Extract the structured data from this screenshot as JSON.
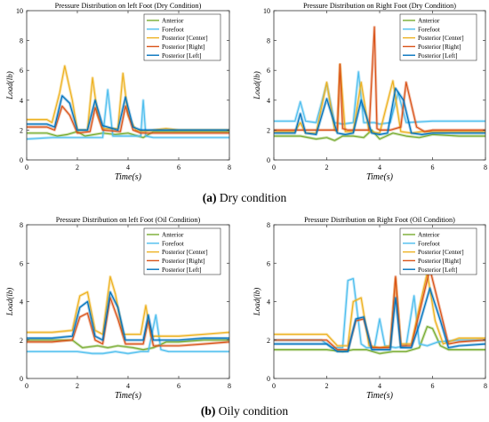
{
  "captions": [
    {
      "letter": "(a)",
      "text": " Dry condition"
    },
    {
      "letter": "(b)",
      "text": " Oily condition"
    }
  ],
  "colors": {
    "Anterior": "#77ac30",
    "Forefoot": "#4dbeee",
    "Posterior [Center]": "#edb120",
    "Posterior [Right]": "#d95319",
    "Posterior [Left]": "#0072bd"
  },
  "chart_data": [
    {
      "type": "line",
      "title": "Pressure Distribution on left Foot (Dry Condition)",
      "xlabel": "Time(s)",
      "ylabel": "Load(lb)",
      "xlim": [
        0,
        8
      ],
      "ylim": [
        0,
        10
      ],
      "xticks": [
        0,
        2,
        4,
        6,
        8
      ],
      "yticks": [
        0,
        2,
        4,
        6,
        8,
        10
      ],
      "legend_position": "top-right",
      "series": [
        {
          "name": "Anterior",
          "x": [
            0,
            0.8,
            1.2,
            1.6,
            2.0,
            2.3,
            3.0,
            3.5,
            4.0,
            4.6,
            5.0,
            5.5,
            6.0,
            7.0,
            8.0
          ],
          "y": [
            1.8,
            1.8,
            1.6,
            1.7,
            1.9,
            1.6,
            1.8,
            1.7,
            1.8,
            1.5,
            1.9,
            1.9,
            1.9,
            1.9,
            1.9
          ]
        },
        {
          "name": "Forefoot",
          "x": [
            0,
            1.0,
            2.0,
            3.0,
            3.2,
            3.4,
            4.0,
            4.5,
            4.6,
            4.7,
            5.0,
            6.0,
            7.0,
            8.0
          ],
          "y": [
            1.4,
            1.5,
            1.5,
            1.5,
            4.7,
            1.6,
            1.6,
            1.6,
            4.0,
            1.6,
            1.5,
            1.5,
            1.5,
            1.5
          ]
        },
        {
          "name": "Posterior [Center]",
          "x": [
            0,
            0.8,
            1.0,
            1.3,
            1.5,
            1.8,
            2.0,
            2.4,
            2.6,
            2.8,
            3.0,
            3.6,
            3.8,
            4.0,
            4.3,
            4.6,
            5.0,
            5.5,
            6.0,
            7.0,
            8.0
          ],
          "y": [
            2.7,
            2.7,
            2.5,
            4.5,
            6.3,
            4.0,
            2.0,
            2.0,
            5.5,
            3.0,
            2.1,
            2.1,
            5.8,
            3.0,
            2.0,
            1.9,
            2.0,
            2.1,
            2.0,
            2.0,
            2.0
          ]
        },
        {
          "name": "Posterior [Right]",
          "x": [
            0,
            0.8,
            1.1,
            1.4,
            1.7,
            2.0,
            2.5,
            2.7,
            3.0,
            3.7,
            3.9,
            4.2,
            4.5,
            5.0,
            6.0,
            7.0,
            8.0
          ],
          "y": [
            2.2,
            2.2,
            2.0,
            3.6,
            3.0,
            1.8,
            1.9,
            3.5,
            2.0,
            1.9,
            3.6,
            2.0,
            1.8,
            1.8,
            1.8,
            1.8,
            1.8
          ]
        },
        {
          "name": "Posterior [Left]",
          "x": [
            0,
            0.8,
            1.1,
            1.4,
            1.7,
            2.0,
            2.4,
            2.7,
            3.0,
            3.6,
            3.9,
            4.2,
            4.5,
            5.0,
            6.0,
            7.0,
            8.0
          ],
          "y": [
            2.4,
            2.4,
            2.2,
            4.3,
            3.8,
            2.0,
            2.0,
            4.0,
            2.3,
            2.0,
            4.2,
            2.2,
            2.0,
            2.0,
            2.0,
            2.0,
            2.0
          ]
        }
      ]
    },
    {
      "type": "line",
      "title": "Pressure Distribution on Right Foot (Dry Condition)",
      "xlabel": "Time(s)",
      "ylabel": "Load(lb)",
      "xlim": [
        0,
        8
      ],
      "ylim": [
        0,
        10
      ],
      "xticks": [
        0,
        2,
        4,
        6,
        8
      ],
      "yticks": [
        0,
        2,
        4,
        6,
        8,
        10
      ],
      "legend_position": "top-right",
      "series": [
        {
          "name": "Anterior",
          "x": [
            0,
            1.0,
            1.6,
            2.0,
            2.3,
            2.6,
            3.0,
            3.4,
            3.7,
            4.0,
            4.5,
            5.0,
            5.5,
            6.0,
            7.0,
            8.0
          ],
          "y": [
            1.6,
            1.6,
            1.4,
            1.5,
            1.3,
            1.6,
            1.6,
            1.5,
            2.0,
            1.4,
            1.8,
            1.6,
            1.5,
            1.7,
            1.6,
            1.6
          ]
        },
        {
          "name": "Forefoot",
          "x": [
            0,
            0.8,
            1.0,
            1.2,
            1.6,
            2.0,
            2.3,
            2.6,
            3.0,
            3.2,
            3.4,
            3.8,
            4.0,
            4.4,
            4.7,
            5.0,
            6.0,
            7.0,
            8.0
          ],
          "y": [
            2.6,
            2.6,
            3.9,
            2.6,
            2.5,
            5.1,
            2.5,
            2.4,
            2.5,
            5.9,
            2.5,
            2.5,
            2.4,
            2.5,
            4.5,
            2.5,
            2.6,
            2.6,
            2.6
          ]
        },
        {
          "name": "Posterior [Center]",
          "x": [
            0,
            0.8,
            1.0,
            1.2,
            1.6,
            2.0,
            2.3,
            2.4,
            2.5,
            2.7,
            3.0,
            3.3,
            3.6,
            4.0,
            4.5,
            4.8,
            5.2,
            5.6,
            6.0,
            7.0,
            8.0
          ],
          "y": [
            1.9,
            1.9,
            2.5,
            1.8,
            1.8,
            5.2,
            2.0,
            1.9,
            6.4,
            1.9,
            1.9,
            5.2,
            1.9,
            1.8,
            5.3,
            1.9,
            1.8,
            1.9,
            1.9,
            1.9,
            1.9
          ]
        },
        {
          "name": "Posterior [Right]",
          "x": [
            0,
            1.0,
            1.6,
            2.0,
            2.4,
            2.5,
            2.6,
            2.8,
            3.3,
            3.6,
            3.8,
            3.9,
            4.0,
            4.4,
            4.8,
            5.0,
            5.4,
            5.7,
            6.0,
            7.0,
            8.0
          ],
          "y": [
            2.0,
            2.0,
            2.0,
            2.0,
            2.0,
            6.4,
            2.1,
            2.0,
            2.0,
            2.0,
            8.9,
            2.1,
            2.0,
            2.0,
            2.2,
            5.2,
            2.2,
            1.9,
            2.0,
            2.0,
            2.0
          ]
        },
        {
          "name": "Posterior [Left]",
          "x": [
            0,
            0.8,
            1.0,
            1.2,
            1.6,
            2.0,
            2.4,
            2.7,
            3.0,
            3.3,
            3.7,
            4.0,
            4.3,
            4.6,
            4.9,
            5.2,
            5.6,
            6.0,
            7.0,
            8.0
          ],
          "y": [
            1.8,
            1.8,
            3.1,
            1.8,
            1.7,
            4.1,
            1.8,
            1.7,
            1.8,
            4.0,
            1.8,
            1.7,
            1.8,
            4.8,
            4.0,
            1.8,
            1.7,
            1.8,
            1.8,
            1.8
          ]
        }
      ]
    },
    {
      "type": "line",
      "title": "Pressure Distribution on left Foot (Oil Condition)",
      "xlabel": "Time(s)",
      "ylabel": "Load(lb)",
      "xlim": [
        0,
        8
      ],
      "ylim": [
        0,
        8
      ],
      "xticks": [
        0,
        2,
        4,
        6,
        8
      ],
      "yticks": [
        0,
        2,
        4,
        6,
        8
      ],
      "legend_position": "top-right",
      "series": [
        {
          "name": "Anterior",
          "x": [
            0,
            1.0,
            1.8,
            2.2,
            2.8,
            3.2,
            3.6,
            4.2,
            4.6,
            5.0,
            5.5,
            6.0,
            7.0,
            8.0
          ],
          "y": [
            2.0,
            2.0,
            2.0,
            1.6,
            1.7,
            1.6,
            1.7,
            1.6,
            1.5,
            1.6,
            1.9,
            1.9,
            2.0,
            2.0
          ]
        },
        {
          "name": "Forefoot",
          "x": [
            0,
            1.0,
            2.0,
            2.6,
            3.0,
            3.5,
            4.0,
            4.5,
            4.8,
            5.1,
            5.3,
            5.6,
            6.0,
            7.0,
            8.0
          ],
          "y": [
            1.4,
            1.4,
            1.4,
            1.3,
            1.3,
            1.4,
            1.3,
            1.4,
            1.4,
            3.3,
            1.5,
            1.4,
            1.4,
            1.4,
            1.4
          ]
        },
        {
          "name": "Posterior [Center]",
          "x": [
            0,
            1.0,
            1.8,
            2.1,
            2.4,
            2.7,
            3.0,
            3.3,
            3.5,
            3.8,
            4.2,
            4.5,
            4.7,
            4.9,
            5.2,
            5.6,
            6.0,
            7.0,
            8.0
          ],
          "y": [
            2.4,
            2.4,
            2.5,
            4.3,
            4.5,
            2.5,
            2.3,
            5.3,
            4.4,
            2.3,
            2.3,
            2.3,
            3.8,
            2.2,
            2.2,
            2.2,
            2.2,
            2.3,
            2.4
          ]
        },
        {
          "name": "Posterior [Right]",
          "x": [
            0,
            1.0,
            1.8,
            2.1,
            2.4,
            2.7,
            3.0,
            3.3,
            3.6,
            3.9,
            4.3,
            4.6,
            4.8,
            5.0,
            5.4,
            6.0,
            7.0,
            8.0
          ],
          "y": [
            1.9,
            1.9,
            2.0,
            3.2,
            3.4,
            2.0,
            1.8,
            4.2,
            3.1,
            1.8,
            1.8,
            1.8,
            3.0,
            1.7,
            1.7,
            1.7,
            1.8,
            1.9
          ]
        },
        {
          "name": "Posterior [Left]",
          "x": [
            0,
            1.0,
            1.8,
            2.1,
            2.4,
            2.7,
            3.0,
            3.3,
            3.6,
            3.9,
            4.3,
            4.6,
            4.8,
            5.0,
            5.4,
            6.0,
            7.0,
            8.0
          ],
          "y": [
            2.1,
            2.1,
            2.2,
            3.7,
            4.0,
            2.2,
            2.0,
            4.5,
            3.7,
            2.0,
            2.0,
            2.0,
            3.3,
            2.0,
            2.0,
            2.0,
            2.1,
            2.1
          ]
        }
      ]
    },
    {
      "type": "line",
      "title": "Pressure Distribution on Right Foot (Oil Condition)",
      "xlabel": "Time(s)",
      "ylabel": "Load(lb)",
      "xlim": [
        0,
        8
      ],
      "ylim": [
        0,
        8
      ],
      "xticks": [
        0,
        2,
        4,
        6,
        8
      ],
      "yticks": [
        0,
        2,
        4,
        6,
        8
      ],
      "legend_position": "top-right",
      "series": [
        {
          "name": "Anterior",
          "x": [
            0,
            1.0,
            2.0,
            2.6,
            3.0,
            3.5,
            4.0,
            4.5,
            5.0,
            5.5,
            5.8,
            6.0,
            6.3,
            6.6,
            7.0,
            8.0
          ],
          "y": [
            1.5,
            1.5,
            1.5,
            1.4,
            1.5,
            1.5,
            1.3,
            1.4,
            1.4,
            1.6,
            2.7,
            2.6,
            1.7,
            1.5,
            1.5,
            1.5
          ]
        },
        {
          "name": "Forefoot",
          "x": [
            0,
            1.0,
            1.8,
            2.2,
            2.6,
            2.8,
            3.0,
            3.3,
            3.5,
            3.8,
            4.0,
            4.2,
            4.6,
            5.0,
            5.3,
            5.5,
            5.8,
            6.2,
            7.0,
            8.0
          ],
          "y": [
            2.0,
            2.0,
            2.0,
            1.6,
            1.6,
            5.1,
            5.2,
            1.8,
            1.6,
            1.6,
            3.1,
            1.7,
            1.6,
            1.7,
            4.3,
            1.8,
            1.7,
            1.9,
            2.0,
            2.0
          ]
        },
        {
          "name": "Posterior [Center]",
          "x": [
            0,
            1.0,
            2.0,
            2.4,
            2.8,
            3.0,
            3.3,
            3.6,
            4.0,
            4.4,
            4.6,
            4.8,
            5.2,
            5.5,
            5.8,
            6.1,
            6.4,
            7.0,
            8.0
          ],
          "y": [
            2.3,
            2.3,
            2.3,
            1.7,
            1.7,
            4.0,
            4.2,
            1.7,
            1.6,
            1.7,
            5.2,
            1.8,
            1.8,
            3.7,
            5.5,
            3.0,
            1.8,
            2.1,
            2.1
          ]
        },
        {
          "name": "Posterior [Right]",
          "x": [
            0,
            1.0,
            2.0,
            2.4,
            2.8,
            3.1,
            3.4,
            3.7,
            4.0,
            4.4,
            4.6,
            4.8,
            5.2,
            5.5,
            5.9,
            6.3,
            6.6,
            7.0,
            8.0
          ],
          "y": [
            2.0,
            2.0,
            2.0,
            1.5,
            1.5,
            3.0,
            3.1,
            1.6,
            1.6,
            1.6,
            5.3,
            1.7,
            1.7,
            3.4,
            5.7,
            3.5,
            1.8,
            1.9,
            2.0
          ]
        },
        {
          "name": "Posterior [Left]",
          "x": [
            0,
            1.0,
            2.0,
            2.4,
            2.8,
            3.1,
            3.4,
            3.7,
            4.0,
            4.4,
            4.6,
            4.8,
            5.2,
            5.5,
            5.9,
            6.3,
            6.6,
            7.0,
            8.0
          ],
          "y": [
            1.8,
            1.8,
            1.8,
            1.4,
            1.4,
            3.1,
            3.2,
            1.5,
            1.5,
            1.5,
            4.2,
            1.6,
            1.6,
            2.8,
            4.7,
            3.0,
            1.6,
            1.7,
            1.8
          ]
        }
      ]
    }
  ]
}
